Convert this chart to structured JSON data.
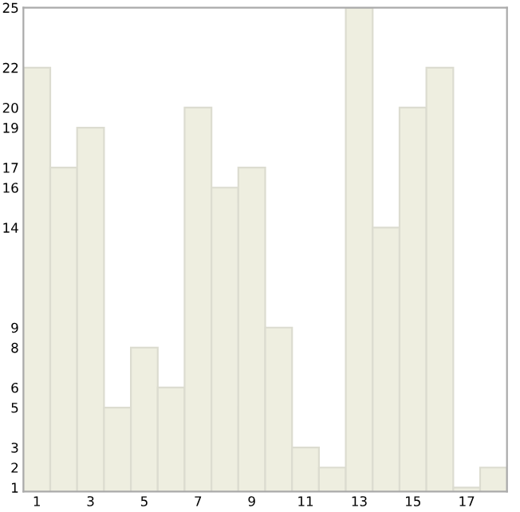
{
  "chart_data": {
    "type": "bar",
    "categories": [
      "1",
      null,
      "3",
      null,
      "5",
      null,
      "7",
      null,
      "9",
      null,
      "11",
      null,
      "13",
      null,
      "15",
      null,
      "17",
      null
    ],
    "values": [
      22,
      17,
      19,
      5,
      8,
      6,
      20,
      16,
      17,
      9,
      3,
      2,
      25,
      14,
      20,
      22,
      1,
      2
    ],
    "color": "#eeeee0",
    "ylim": [
      0.8,
      25
    ],
    "yticks": [
      1,
      2,
      3,
      5,
      6,
      8,
      9,
      14,
      16,
      17,
      19,
      20,
      22,
      25
    ],
    "grid": false,
    "legend": false
  }
}
